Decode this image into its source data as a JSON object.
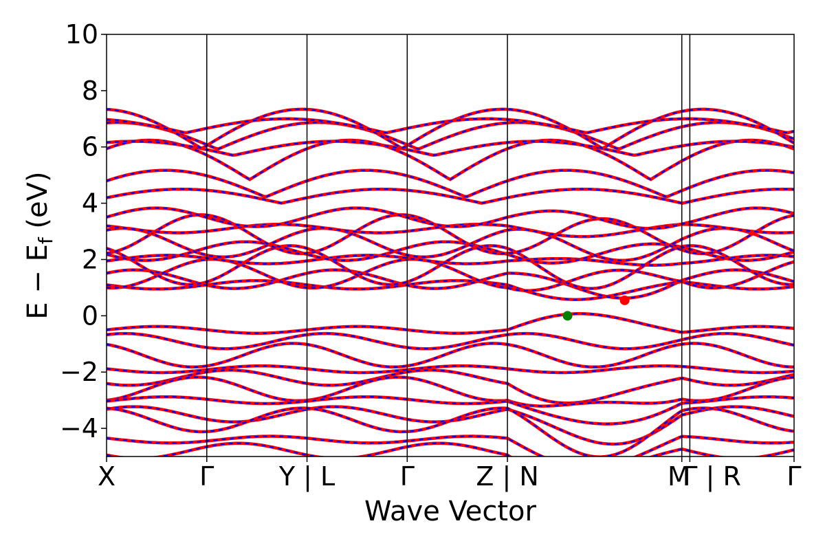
{
  "chart_data": {
    "type": "line",
    "title": "",
    "xlabel": "Wave Vector",
    "ylabel_parts": {
      "main": "E − E",
      "sub": "f",
      "unit": " (eV)"
    },
    "ylim": [
      -5,
      10
    ],
    "xlim": [
      0,
      6.86
    ],
    "yticks": [
      {
        "v": 10,
        "label": "10"
      },
      {
        "v": 8,
        "label": "8"
      },
      {
        "v": 6,
        "label": "6"
      },
      {
        "v": 4,
        "label": "4"
      },
      {
        "v": 2,
        "label": "2"
      },
      {
        "v": 0,
        "label": "0"
      },
      {
        "v": -2,
        "label": "−2"
      },
      {
        "v": -4,
        "label": "−4"
      }
    ],
    "kpoints": [
      {
        "x": 0,
        "label": "X",
        "line": false
      },
      {
        "x": 1,
        "label": "Γ",
        "line": true
      },
      {
        "x": 2,
        "label": "Y | L",
        "line": true
      },
      {
        "x": 3,
        "label": "Γ",
        "line": true
      },
      {
        "x": 4,
        "label": "Z | N",
        "line": true
      },
      {
        "x": 5.74,
        "label": "M",
        "line": true
      },
      {
        "x": 5.82,
        "label": "Γ | R",
        "line": true
      },
      {
        "x": 6.86,
        "label": "Γ",
        "line": false
      }
    ],
    "series_style": [
      {
        "color": "#ff0000",
        "role": "solid"
      },
      {
        "color": "#0000ff",
        "role": "dashed"
      }
    ],
    "band_anchors": {
      "conduction": [
        {
          "x": 0,
          "e": 1.1
        },
        {
          "x": 0,
          "e": 1.3
        },
        {
          "x": 0,
          "e": 1.5
        },
        {
          "x": 0,
          "e": 1.8
        },
        {
          "x": 0,
          "e": 2.0
        },
        {
          "x": 0,
          "e": 2.3
        },
        {
          "x": 0,
          "e": 2.6
        },
        {
          "x": 0,
          "e": 2.9
        },
        {
          "x": 0,
          "e": 3.1
        },
        {
          "x": 0,
          "e": 3.5
        }
      ],
      "upper": [
        {
          "x": 0,
          "e": 4.2
        },
        {
          "x": 0,
          "e": 4.6
        },
        {
          "x": 0,
          "e": 5.4
        },
        {
          "x": 0,
          "e": 5.9
        },
        {
          "x": 0,
          "e": 6.3
        },
        {
          "x": 0,
          "e": 6.5
        },
        {
          "x": 0,
          "e": 6.7
        }
      ],
      "valence": [
        {
          "x": 0,
          "e": -0.5
        },
        {
          "x": 0,
          "e": -0.9
        },
        {
          "x": 0,
          "e": -1.4
        },
        {
          "x": 0,
          "e": -1.9
        },
        {
          "x": 0,
          "e": -2.2
        },
        {
          "x": 0,
          "e": -2.6
        },
        {
          "x": 0,
          "e": -3.0
        },
        {
          "x": 0,
          "e": -3.5
        },
        {
          "x": 0,
          "e": -3.7
        },
        {
          "x": 0,
          "e": -4.4
        },
        {
          "x": 0,
          "e": -4.8
        }
      ]
    },
    "markers": [
      {
        "x": 4.6,
        "y": 0.0,
        "color": "#008000",
        "name": "vbm-marker"
      },
      {
        "x": 5.17,
        "y": 0.55,
        "color": "#ff0000",
        "name": "cbm-marker"
      }
    ],
    "grid": false,
    "legend": "none"
  }
}
